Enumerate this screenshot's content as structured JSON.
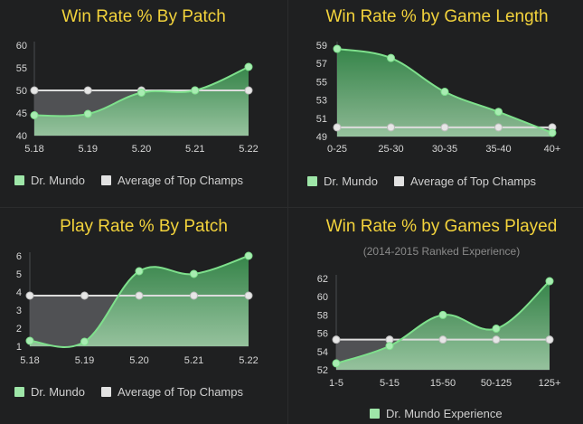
{
  "colors": {
    "background": "#1f2021",
    "title": "#f3d33c",
    "series_line": "#7ee08c",
    "series_fill_top": "#3c9d54",
    "series_fill_bottom": "#a6dcae",
    "avg_line": "#dcdcdc",
    "avg_fill": "#55575a"
  },
  "chart_data": [
    {
      "id": "wr_patch",
      "type": "area",
      "title": "Win Rate % By Patch",
      "subtitle": "",
      "categories": [
        "5.18",
        "5.19",
        "5.20",
        "5.21",
        "5.22"
      ],
      "ylim": [
        40,
        60
      ],
      "yticks": [
        "40",
        "45",
        "50",
        "55",
        "60"
      ],
      "series": [
        {
          "name": "Dr. Mundo",
          "values": [
            44.5,
            44.8,
            49.5,
            50.0,
            55.2
          ]
        },
        {
          "name": "Average of Top Champs",
          "values": [
            50,
            50,
            50,
            50,
            50
          ]
        }
      ],
      "legend": [
        "Dr. Mundo",
        "Average of Top Champs"
      ],
      "legend_position": "bottom",
      "grid": false
    },
    {
      "id": "wr_length",
      "type": "area",
      "title": "Win Rate % by Game Length",
      "subtitle": "",
      "categories": [
        "0-25",
        "25-30",
        "30-35",
        "35-40",
        "40+"
      ],
      "ylim": [
        49,
        59
      ],
      "yticks": [
        "49",
        "51",
        "53",
        "55",
        "57",
        "59"
      ],
      "series": [
        {
          "name": "Dr. Mundo",
          "values": [
            58.6,
            57.6,
            53.9,
            51.7,
            49.4
          ]
        },
        {
          "name": "Average of Top Champs",
          "values": [
            50.0,
            50.0,
            50.0,
            50.0,
            50.0
          ]
        }
      ],
      "legend": [
        "Dr. Mundo",
        "Average of Top Champs"
      ],
      "legend_position": "bottom",
      "grid": false
    },
    {
      "id": "pr_patch",
      "type": "area",
      "title": "Play Rate % By Patch",
      "subtitle": "",
      "categories": [
        "5.18",
        "5.19",
        "5.20",
        "5.21",
        "5.22"
      ],
      "ylim": [
        1,
        6
      ],
      "yticks": [
        "1",
        "2",
        "3",
        "4",
        "5",
        "6"
      ],
      "series": [
        {
          "name": "Dr. Mundo",
          "values": [
            1.3,
            1.25,
            5.15,
            5.0,
            6.0
          ]
        },
        {
          "name": "Average of Top Champs",
          "values": [
            3.8,
            3.8,
            3.8,
            3.8,
            3.8
          ]
        }
      ],
      "legend": [
        "Dr. Mundo",
        "Average of Top Champs"
      ],
      "legend_position": "bottom",
      "grid": false
    },
    {
      "id": "wr_games",
      "type": "area",
      "title": "Win Rate % by Games Played",
      "subtitle": "(2014-2015 Ranked Experience)",
      "categories": [
        "1-5",
        "5-15",
        "15-50",
        "50-125",
        "125+"
      ],
      "ylim": [
        52,
        62
      ],
      "yticks": [
        "52",
        "54",
        "56",
        "58",
        "60",
        "62"
      ],
      "series": [
        {
          "name": "Dr. Mundo Experience",
          "values": [
            52.7,
            54.6,
            58.0,
            56.5,
            61.7
          ]
        },
        {
          "name": "",
          "values": [
            55.3,
            55.3,
            55.3,
            55.3,
            55.3
          ]
        }
      ],
      "legend": [
        "Dr. Mundo Experience"
      ],
      "legend_position": "bottom",
      "grid": false
    }
  ]
}
